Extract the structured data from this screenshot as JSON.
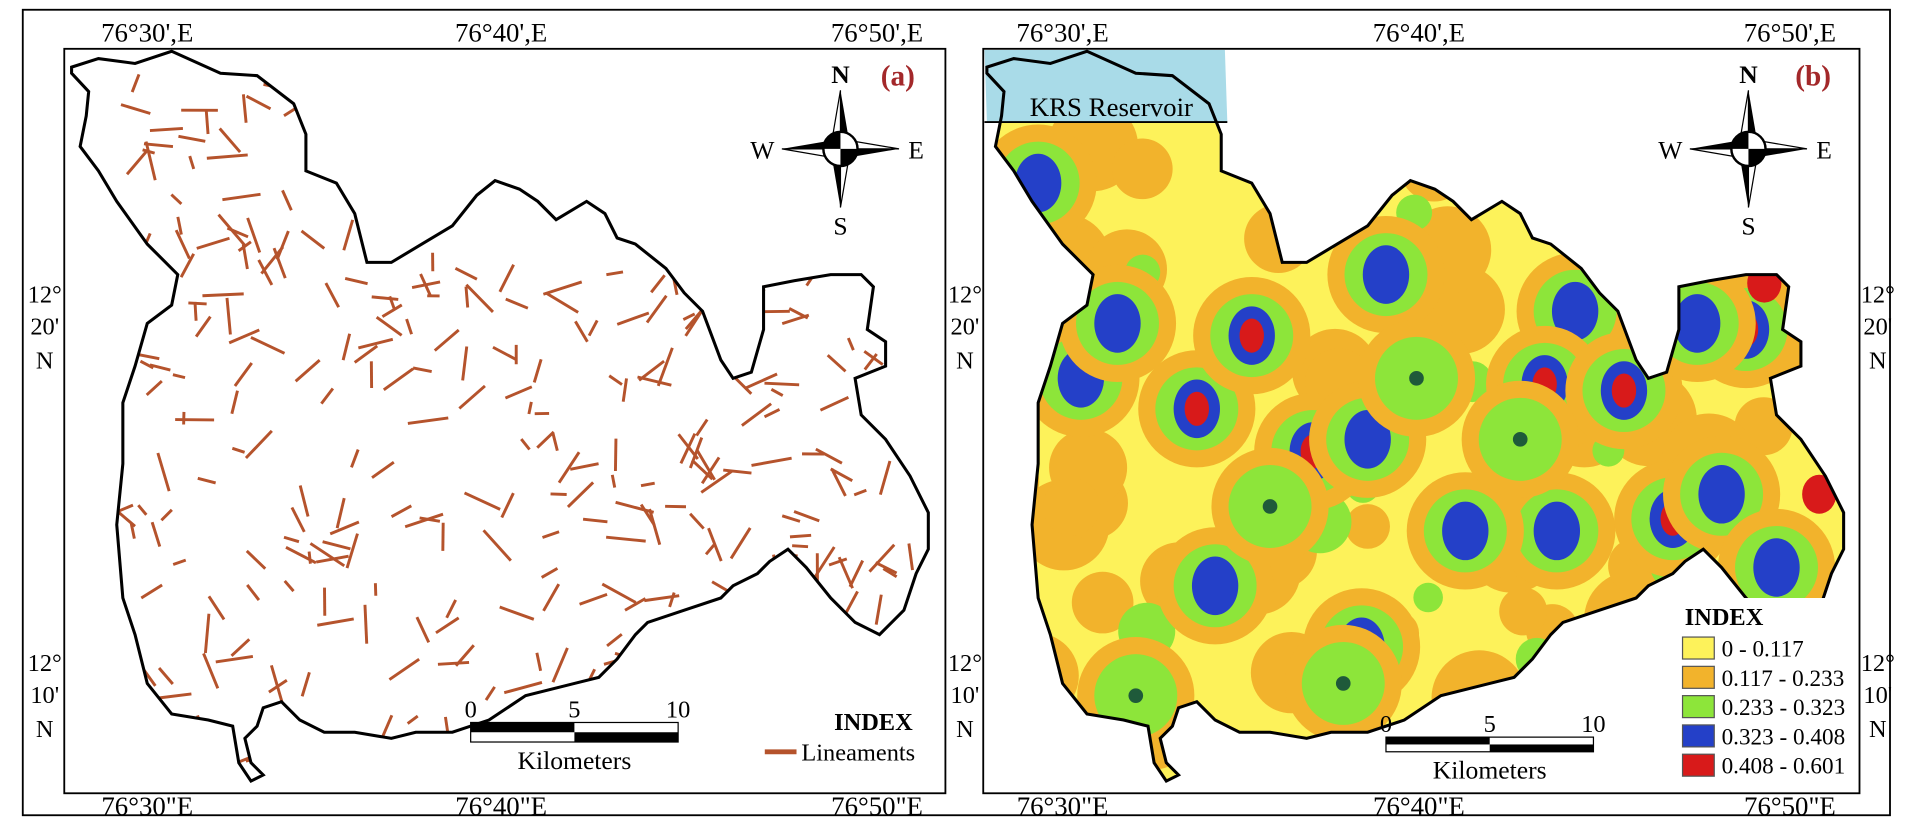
{
  "panel_a": {
    "label": "(a)",
    "top_ticks": [
      "76°30',E",
      "76°40',E",
      "76°50',E"
    ],
    "bottom_ticks": [
      "76°30\"E",
      "76°40\"E",
      "76°50\"E"
    ],
    "lat_ticks": [
      [
        "12°",
        "20'",
        "N"
      ],
      [
        "12°",
        "10'",
        "N"
      ]
    ],
    "legend_title": "INDEX",
    "legend_items": [
      {
        "label": "Lineaments",
        "color": "#b5532c"
      }
    ],
    "scale": {
      "ticks": [
        "0",
        "5",
        "10"
      ],
      "unit": "Kilometers"
    },
    "compass": {
      "n": "N",
      "s": "S",
      "e": "E",
      "w": "W"
    }
  },
  "panel_b": {
    "label": "(b)",
    "reservoir_label": "KRS Reservoir",
    "top_ticks": [
      "76°30',E",
      "76°40',E",
      "76°50',E"
    ],
    "bottom_ticks": [
      "76°30\"E",
      "76°40\"E",
      "76°50\"E"
    ],
    "lat_ticks": [
      [
        "12°",
        "20'",
        "N"
      ],
      [
        "12°",
        "10'",
        "N"
      ]
    ],
    "legend_title": "INDEX",
    "legend_items": [
      {
        "label": "0 - 0.117",
        "color": "#fdf25a"
      },
      {
        "label": "0.117 - 0.233",
        "color": "#f2b32c"
      },
      {
        "label": "0.233 - 0.323",
        "color": "#8de53a"
      },
      {
        "label": "0.323 - 0.408",
        "color": "#2440c8"
      },
      {
        "label": "0.408 - 0.601",
        "color": "#d81a1a"
      }
    ],
    "scale": {
      "ticks": [
        "0",
        "5",
        "10"
      ],
      "unit": "Kilometers"
    },
    "compass": {
      "n": "N",
      "s": "S",
      "e": "E",
      "w": "W"
    }
  },
  "colors": {
    "boundary": "#000000",
    "reservoir": "#a9dbe8",
    "lineament": "#b5532c"
  }
}
